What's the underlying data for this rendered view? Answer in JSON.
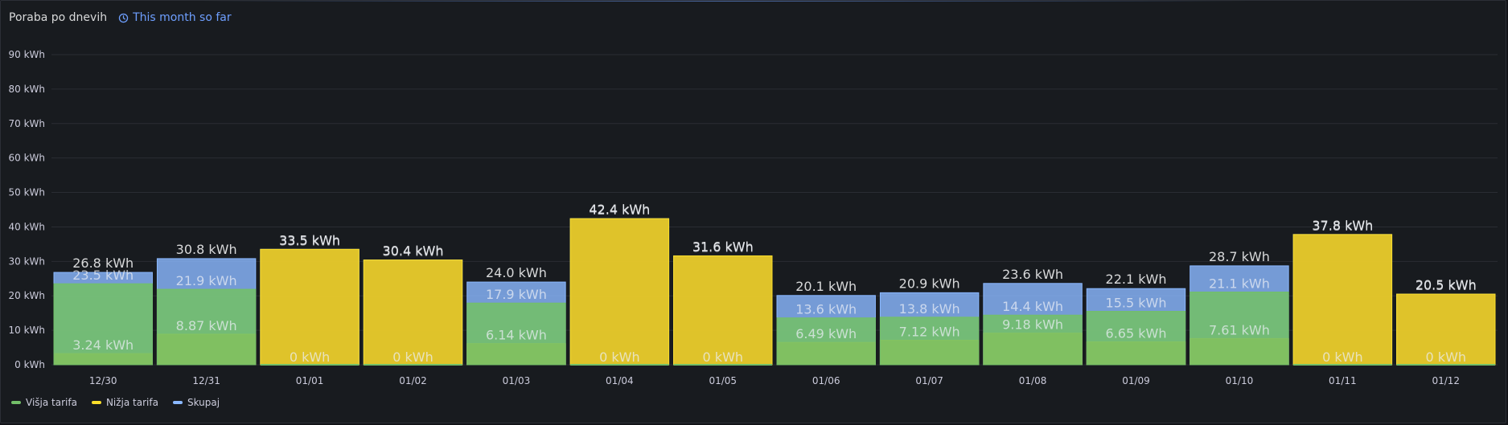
{
  "panel": {
    "title": "Poraba po dnevih",
    "time_info": "This month so far",
    "time_icon": "clock-icon"
  },
  "colors": {
    "background": "#181b1f",
    "visja": "#73bf69",
    "nizja": "#fade2a",
    "skupaj": "#8ab8ff",
    "accent": "#6e9fff"
  },
  "chart_data": {
    "type": "bar",
    "title": "Poraba po dnevih",
    "unit": "kWh",
    "stacked": false,
    "ylim": [
      0,
      90
    ],
    "y_ticks": [
      0,
      10,
      20,
      30,
      40,
      50,
      60,
      70,
      80,
      90
    ],
    "y_tick_labels": [
      "0 kWh",
      "10 kWh",
      "20 kWh",
      "30 kWh",
      "40 kWh",
      "50 kWh",
      "60 kWh",
      "70 kWh",
      "80 kWh",
      "90 kWh"
    ],
    "grid": true,
    "legend_position": "bottom-left",
    "categories": [
      "12/30",
      "12/31",
      "01/01",
      "01/02",
      "01/03",
      "01/04",
      "01/05",
      "01/06",
      "01/07",
      "01/08",
      "01/09",
      "01/10",
      "01/11",
      "01/12"
    ],
    "series": [
      {
        "name": "Višja tarifa",
        "color": "#73bf69",
        "values": [
          23.5,
          21.9,
          0,
          0,
          17.9,
          0,
          0,
          13.6,
          13.8,
          14.4,
          15.5,
          21.1,
          0,
          0
        ],
        "labels": [
          "23.5 kWh",
          "21.9 kWh",
          "0 kWh",
          "0 kWh",
          "17.9 kWh",
          "0 kWh",
          "0 kWh",
          "13.6 kWh",
          "13.8 kWh",
          "14.4 kWh",
          "15.5 kWh",
          "21.1 kWh",
          "0 kWh",
          "0 kWh"
        ]
      },
      {
        "name": "Nižja tarifa",
        "color": "#fade2a",
        "values": [
          3.24,
          8.87,
          33.5,
          30.4,
          6.14,
          42.4,
          31.6,
          6.49,
          7.12,
          9.18,
          6.65,
          7.61,
          37.8,
          20.5
        ],
        "labels": [
          "3.24 kWh",
          "8.87 kWh",
          "33.5 kWh",
          "30.4 kWh",
          "6.14 kWh",
          "42.4 kWh",
          "31.6 kWh",
          "6.49 kWh",
          "7.12 kWh",
          "9.18 kWh",
          "6.65 kWh",
          "7.61 kWh",
          "37.8 kWh",
          "20.5 kWh"
        ]
      },
      {
        "name": "Skupaj",
        "color": "#8ab8ff",
        "values": [
          26.8,
          30.8,
          33.5,
          30.4,
          24.0,
          42.4,
          31.6,
          20.1,
          20.9,
          23.6,
          22.1,
          28.7,
          37.8,
          20.5
        ],
        "labels": [
          "26.8 kWh",
          "30.8 kWh",
          "33.5 kWh",
          "30.4 kWh",
          "24.0 kWh",
          "42.4 kWh",
          "31.6 kWh",
          "20.1 kWh",
          "20.9 kWh",
          "23.6 kWh",
          "22.1 kWh",
          "28.7 kWh",
          "37.8 kWh",
          "20.5 kWh"
        ]
      }
    ]
  }
}
